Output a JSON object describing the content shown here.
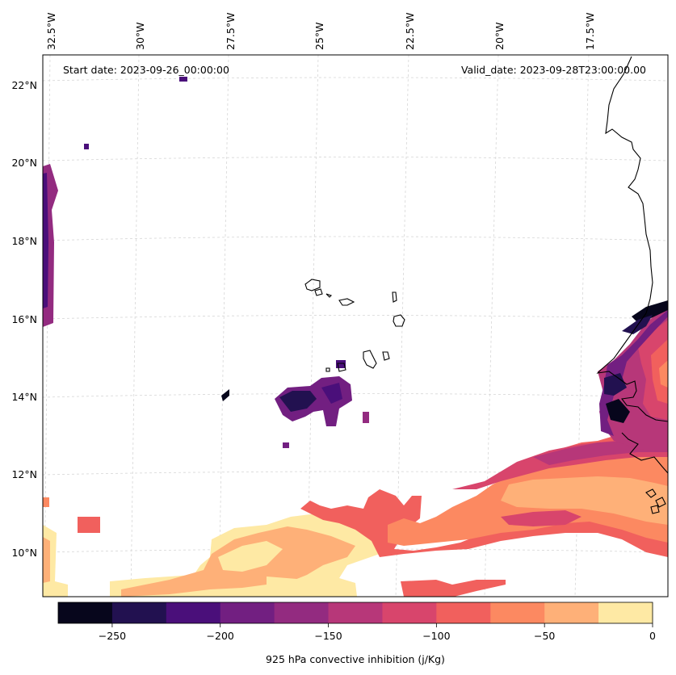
{
  "header": {
    "start_date": "Start date: 2023-09-26_00:00:00",
    "valid_date": "Valid_date: 2023-09-28T23:00:00.00"
  },
  "longitude_labels": [
    "32.5°W",
    "30°W",
    "27.5°W",
    "25°W",
    "22.5°W",
    "20°W",
    "17.5°W"
  ],
  "latitude_labels": [
    "22°N",
    "20°N",
    "18°N",
    "16°N",
    "14°N",
    "12°N",
    "10°N"
  ],
  "colorbar": {
    "label": "925 hPa convective inhibition (j/Kg)",
    "ticks": [
      "−250",
      "−200",
      "−150",
      "−100",
      "−50",
      "0"
    ],
    "levels": [
      -275,
      -250,
      -225,
      -200,
      -175,
      -150,
      -125,
      -100,
      -75,
      -50,
      -25,
      0
    ],
    "colors": [
      "#07061c",
      "#221150",
      "#4a0f7a",
      "#721f81",
      "#932b80",
      "#b73779",
      "#d8456c",
      "#f1605d",
      "#fc8961",
      "#feb078",
      "#fee9a4"
    ]
  },
  "colors": {
    "coastline": "#000000",
    "gridline": "#cccccc",
    "axes_frame": "#000000"
  }
}
